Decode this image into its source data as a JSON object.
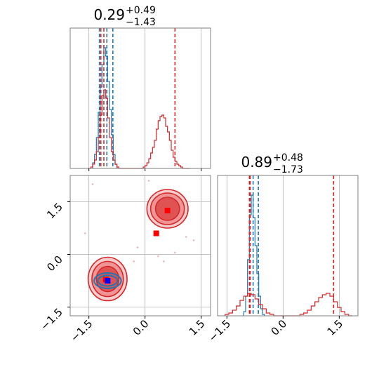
{
  "chart_data": [
    {
      "type": "histogram",
      "panel": "top-left",
      "parameter_index": 0,
      "title": {
        "value": "0.29",
        "plus": "+0.49",
        "minus": "−1.43"
      },
      "xlim": [
        -2.0,
        1.75
      ],
      "ylim": [
        0,
        1.0
      ],
      "grid": true,
      "series": [
        {
          "color": "#1f77b4",
          "bin_edges": [
            -1.4,
            -1.35,
            -1.3,
            -1.25,
            -1.2,
            -1.15,
            -1.1,
            -1.05,
            -1.0,
            -0.95,
            -0.9,
            -0.85,
            -0.8,
            -0.75
          ],
          "heights": [
            0.04,
            0.1,
            0.22,
            0.4,
            0.58,
            0.74,
            0.86,
            0.8,
            0.62,
            0.42,
            0.24,
            0.1,
            0.03
          ],
          "quantiles": [
            -1.22,
            -1.02,
            -0.86
          ]
        },
        {
          "color": "#d62728",
          "bin_edges": [
            -1.5,
            -1.45,
            -1.4,
            -1.35,
            -1.3,
            -1.25,
            -1.2,
            -1.15,
            -1.1,
            -1.05,
            -1.0,
            -0.95,
            -0.9,
            -0.85,
            -0.8,
            -0.75,
            -0.7,
            -0.65,
            -0.6,
            -0.55,
            -0.5,
            -0.45,
            -0.4,
            -0.35,
            -0.3,
            -0.25,
            -0.2,
            -0.15,
            -0.1,
            -0.05,
            0.0,
            0.05,
            0.1,
            0.15,
            0.2,
            0.25,
            0.3,
            0.35,
            0.4,
            0.45,
            0.5,
            0.55,
            0.6,
            0.65,
            0.7,
            0.75,
            0.8,
            0.85,
            0.9,
            0.95,
            1.0,
            1.05,
            1.1,
            1.15,
            1.2
          ],
          "heights": [
            0.0,
            0.01,
            0.03,
            0.06,
            0.12,
            0.22,
            0.38,
            0.52,
            0.56,
            0.5,
            0.36,
            0.22,
            0.12,
            0.06,
            0.03,
            0.01,
            0.0,
            0.0,
            0.0,
            0.0,
            0.0,
            0.0,
            0.0,
            0.0,
            0.0,
            0.0,
            0.0,
            0.0,
            0.0,
            0.01,
            0.02,
            0.04,
            0.07,
            0.11,
            0.15,
            0.2,
            0.28,
            0.34,
            0.37,
            0.38,
            0.36,
            0.3,
            0.26,
            0.2,
            0.13,
            0.08,
            0.05,
            0.03,
            0.02,
            0.01,
            0.0,
            0.0,
            0.0,
            0.0
          ],
          "quantiles": [
            -1.18,
            -1.1,
            0.8
          ]
        }
      ]
    },
    {
      "type": "histogram",
      "panel": "bottom-right",
      "parameter_index": 1,
      "title": {
        "value": "0.89",
        "plus": "+0.48",
        "minus": "−1.73"
      },
      "xlim": [
        -1.75,
        2.0
      ],
      "ylim": [
        0,
        1.0
      ],
      "grid": true,
      "xticks": [
        -1.5,
        0.0,
        1.5
      ],
      "xtick_labels": [
        "−1.5",
        "0.0",
        "1.5"
      ],
      "series": [
        {
          "color": "#1f77b4",
          "bin_edges": [
            -1.05,
            -1.0,
            -0.95,
            -0.9,
            -0.85,
            -0.8,
            -0.75,
            -0.7,
            -0.65,
            -0.6,
            -0.55,
            -0.5
          ],
          "heights": [
            0.03,
            0.14,
            0.4,
            0.72,
            0.86,
            0.7,
            0.5,
            0.3,
            0.14,
            0.05,
            0.01
          ],
          "quantiles": [
            -0.88,
            -0.8,
            -0.66
          ]
        },
        {
          "color": "#d62728",
          "bin_edges": [
            -1.55,
            -1.45,
            -1.35,
            -1.25,
            -1.15,
            -1.05,
            -0.95,
            -0.85,
            -0.75,
            -0.65,
            -0.55,
            -0.45,
            -0.35,
            -0.25,
            -0.15,
            -0.05,
            0.05,
            0.15,
            0.25,
            0.35,
            0.45,
            0.55,
            0.65,
            0.75,
            0.85,
            0.95,
            1.05,
            1.15,
            1.25,
            1.35,
            1.45,
            1.55,
            1.65,
            1.75,
            1.85
          ],
          "heights": [
            0.01,
            0.02,
            0.04,
            0.07,
            0.11,
            0.14,
            0.16,
            0.15,
            0.12,
            0.08,
            0.05,
            0.02,
            0.01,
            0.0,
            0.0,
            0.0,
            0.0,
            0.0,
            0.0,
            0.0,
            0.01,
            0.02,
            0.04,
            0.07,
            0.1,
            0.13,
            0.15,
            0.16,
            0.14,
            0.1,
            0.06,
            0.03,
            0.01,
            0.0
          ],
          "quantiles": [
            -0.9,
            -0.88,
            1.35
          ]
        }
      ]
    },
    {
      "type": "contour",
      "panel": "bottom-left",
      "xlim": [
        -2.0,
        1.75
      ],
      "ylim": [
        -1.75,
        2.25
      ],
      "grid": true,
      "xticks": [
        -1.5,
        0.0,
        1.5
      ],
      "xtick_labels": [
        "−1.5",
        "0.0",
        "1.5"
      ],
      "yticks": [
        -1.5,
        0.0,
        1.5
      ],
      "ytick_labels": [
        "−1.5",
        "0.0",
        "1.5"
      ],
      "series": [
        {
          "color": "#1f77b4",
          "contours": [
            {
              "cx": -1.0,
              "cy": -0.75,
              "rx": 0.36,
              "ry": 0.22
            },
            {
              "cx": -1.0,
              "cy": -0.75,
              "rx": 0.26,
              "ry": 0.15
            }
          ],
          "outlier_points": [
            [
              -0.65,
              -0.78
            ],
            [
              -0.6,
              -0.77
            ],
            [
              -0.55,
              -0.78
            ],
            [
              -1.35,
              -0.6
            ],
            [
              -0.8,
              -0.55
            ]
          ],
          "marker": {
            "x": -1.0,
            "y": -0.75,
            "color": "#0000ff"
          }
        },
        {
          "color": "#d62728",
          "contours": [
            {
              "cx": -1.0,
              "cy": -0.7,
              "rx": 0.52,
              "ry": 0.62
            },
            {
              "cx": -1.0,
              "cy": -0.7,
              "rx": 0.42,
              "ry": 0.5
            },
            {
              "cx": -1.0,
              "cy": -0.7,
              "rx": 0.3,
              "ry": 0.36
            },
            {
              "cx": 0.6,
              "cy": 1.3,
              "rx": 0.55,
              "ry": 0.55
            },
            {
              "cx": 0.6,
              "cy": 1.3,
              "rx": 0.45,
              "ry": 0.45
            },
            {
              "cx": 0.6,
              "cy": 1.3,
              "rx": 0.32,
              "ry": 0.33
            }
          ],
          "outlier_points": [
            [
              -1.4,
              2.0
            ],
            [
              -0.3,
              -0.2
            ],
            [
              0.35,
              -0.05
            ],
            [
              0.8,
              0.05
            ],
            [
              1.3,
              0.4
            ],
            [
              -1.6,
              0.6
            ],
            [
              0.1,
              2.1
            ],
            [
              1.1,
              0.5
            ],
            [
              -0.2,
              0.2
            ],
            [
              0.5,
              -0.2
            ]
          ],
          "markers": [
            {
              "x": 0.6,
              "y": 1.25,
              "color": "#ff0000"
            },
            {
              "x": 0.3,
              "y": 0.6,
              "color": "#ff0000"
            },
            {
              "x": -1.05,
              "y": -0.72,
              "color": "#ff0000"
            }
          ]
        }
      ]
    }
  ]
}
